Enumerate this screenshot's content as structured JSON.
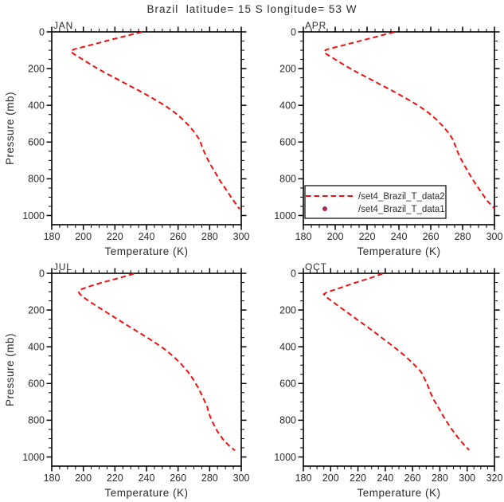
{
  "title": "Brazil  latitude= 15 S longitude= 53 W",
  "colors": {
    "curve": "#ee1111",
    "marker": "#a8285a",
    "axis": "#000000",
    "text": "#2b2b2b",
    "background": "#ffffff"
  },
  "axis_labels": {
    "x": "Temperature (K)",
    "y": "Pressure (mb)"
  },
  "legend": {
    "position": "lower-left-of-APR-panel",
    "entries": [
      {
        "label": "/set4_Brazil_T_data2",
        "symbol": "dashed-line"
      },
      {
        "label": "/set4_Brazil_T_data1",
        "symbol": "dot"
      }
    ]
  },
  "chart_data": [
    {
      "type": "line",
      "title": "JAN",
      "xlabel": "Temperature (K)",
      "ylabel": "Pressure (mb)",
      "xlim": [
        180,
        300
      ],
      "ylim": [
        0,
        1050
      ],
      "x_ticks": [
        180,
        200,
        220,
        240,
        260,
        280,
        300
      ],
      "y_ticks": [
        0,
        200,
        400,
        600,
        800,
        1000
      ],
      "x_minor_step": 5,
      "y_minor_step": 50,
      "grid": false,
      "legend": false,
      "series": [
        {
          "name": "/set4_Brazil_T_data2",
          "style": "dashed",
          "color": "#ee1111",
          "points_T_P": [
            [
              237,
              2
            ],
            [
              233.5,
              8
            ],
            [
              229,
              18
            ],
            [
              223,
              31
            ],
            [
              216,
              46
            ],
            [
              208,
              64
            ],
            [
              200,
              82
            ],
            [
              194,
              95
            ],
            [
              192,
              104
            ],
            [
              193.5,
              118
            ],
            [
              196.5,
              134
            ],
            [
              201,
              158
            ],
            [
              207,
              190
            ],
            [
              214,
              224
            ],
            [
              221,
              255
            ],
            [
              229,
              292
            ],
            [
              237,
              328
            ],
            [
              245,
              367
            ],
            [
              252,
              403
            ],
            [
              258,
              440
            ],
            [
              263,
              477
            ],
            [
              267,
              512
            ],
            [
              270.5,
              548
            ],
            [
              273,
              580
            ],
            [
              274.5,
              608
            ],
            [
              276,
              643
            ],
            [
              278,
              682
            ],
            [
              280.5,
              722
            ],
            [
              283.5,
              766
            ],
            [
              287,
              816
            ],
            [
              291,
              866
            ],
            [
              294.5,
              912
            ],
            [
              297.5,
              947
            ],
            [
              299,
              965
            ]
          ]
        }
      ]
    },
    {
      "type": "line",
      "title": "APR",
      "xlabel": "Temperature (K)",
      "ylabel": "",
      "xlim": [
        180,
        300
      ],
      "ylim": [
        0,
        1050
      ],
      "x_ticks": [
        180,
        200,
        220,
        240,
        260,
        280,
        300
      ],
      "y_ticks": [
        0,
        200,
        400,
        600,
        800,
        1000
      ],
      "x_minor_step": 5,
      "y_minor_step": 50,
      "grid": false,
      "legend": true,
      "series": [
        {
          "name": "/set4_Brazil_T_data2",
          "style": "dashed",
          "color": "#ee1111",
          "points_T_P": [
            [
              237,
              2
            ],
            [
              234,
              8
            ],
            [
              229.5,
              18
            ],
            [
              224,
              31
            ],
            [
              217,
              46
            ],
            [
              209,
              64
            ],
            [
              201,
              82
            ],
            [
              195,
              95
            ],
            [
              193,
              104
            ],
            [
              194,
              118
            ],
            [
              197,
              134
            ],
            [
              201.5,
              158
            ],
            [
              207.5,
              190
            ],
            [
              214.5,
              224
            ],
            [
              221.5,
              255
            ],
            [
              229.5,
              292
            ],
            [
              237.5,
              328
            ],
            [
              245.5,
              367
            ],
            [
              252.5,
              403
            ],
            [
              258.5,
              440
            ],
            [
              263.5,
              477
            ],
            [
              267.5,
              512
            ],
            [
              271,
              548
            ],
            [
              273.5,
              580
            ],
            [
              275,
              610
            ],
            [
              276.5,
              645
            ],
            [
              278.5,
              685
            ],
            [
              281,
              725
            ],
            [
              284,
              770
            ],
            [
              287.5,
              820
            ],
            [
              291.5,
              870
            ],
            [
              295.5,
              920
            ],
            [
              299,
              952
            ],
            [
              300,
              963
            ]
          ]
        }
      ]
    },
    {
      "type": "line",
      "title": "JUL",
      "xlabel": "Temperature (K)",
      "ylabel": "Pressure (mb)",
      "xlim": [
        180,
        300
      ],
      "ylim": [
        0,
        1050
      ],
      "x_ticks": [
        180,
        200,
        220,
        240,
        260,
        280,
        300
      ],
      "y_ticks": [
        0,
        200,
        400,
        600,
        800,
        1000
      ],
      "x_minor_step": 5,
      "y_minor_step": 50,
      "grid": false,
      "legend": false,
      "series": [
        {
          "name": "/set4_Brazil_T_data2",
          "style": "dashed",
          "color": "#ee1111",
          "points_T_P": [
            [
              232,
              2
            ],
            [
              229,
              10
            ],
            [
              225,
              20
            ],
            [
              219,
              34
            ],
            [
              212,
              50
            ],
            [
              205,
              68
            ],
            [
              199,
              86
            ],
            [
              197,
              97
            ],
            [
              197.5,
              110
            ],
            [
              200,
              130
            ],
            [
              204,
              154
            ],
            [
              209,
              182
            ],
            [
              215,
              214
            ],
            [
              222,
              252
            ],
            [
              229.5,
              292
            ],
            [
              237,
              332
            ],
            [
              244.5,
              372
            ],
            [
              251,
              410
            ],
            [
              257,
              452
            ],
            [
              262,
              494
            ],
            [
              266,
              534
            ],
            [
              269.5,
              576
            ],
            [
              272.5,
              620
            ],
            [
              275,
              662
            ],
            [
              277,
              700
            ],
            [
              278.5,
              728
            ],
            [
              279,
              748
            ],
            [
              279.8,
              768
            ],
            [
              281.5,
              805
            ],
            [
              284.5,
              855
            ],
            [
              288.5,
              905
            ],
            [
              292.5,
              940
            ],
            [
              296,
              965
            ]
          ]
        }
      ]
    },
    {
      "type": "line",
      "title": "OCT",
      "xlabel": "Temperature (K)",
      "ylabel": "",
      "xlim": [
        180,
        320
      ],
      "ylim": [
        0,
        1050
      ],
      "x_ticks": [
        180,
        200,
        220,
        240,
        260,
        280,
        300,
        320
      ],
      "y_ticks": [
        0,
        200,
        400,
        600,
        800,
        1000
      ],
      "x_minor_step": 5,
      "y_minor_step": 50,
      "grid": false,
      "legend": false,
      "series": [
        {
          "name": "/set4_Brazil_T_data2",
          "style": "dashed",
          "color": "#ee1111",
          "points_T_P": [
            [
              238,
              2
            ],
            [
              235,
              10
            ],
            [
              230.5,
              22
            ],
            [
              224.5,
              36
            ],
            [
              217,
              54
            ],
            [
              209,
              74
            ],
            [
              201,
              94
            ],
            [
              196.5,
              106
            ],
            [
              195,
              114
            ],
            [
              197,
              130
            ],
            [
              201,
              152
            ],
            [
              206,
              180
            ],
            [
              212,
              212
            ],
            [
              219,
              250
            ],
            [
              226.5,
              290
            ],
            [
              233.5,
              328
            ],
            [
              240.5,
              368
            ],
            [
              247.5,
              408
            ],
            [
              254.5,
              450
            ],
            [
              260.5,
              492
            ],
            [
              265.5,
              530
            ],
            [
              267.5,
              552
            ],
            [
              269,
              578
            ],
            [
              271,
              608
            ],
            [
              273,
              648
            ],
            [
              275.5,
              688
            ],
            [
              278,
              718
            ],
            [
              281,
              758
            ],
            [
              284.5,
              802
            ],
            [
              289,
              852
            ],
            [
              293.5,
              897
            ],
            [
              297.5,
              932
            ],
            [
              300.5,
              955
            ],
            [
              301.5,
              962
            ]
          ]
        }
      ]
    }
  ]
}
